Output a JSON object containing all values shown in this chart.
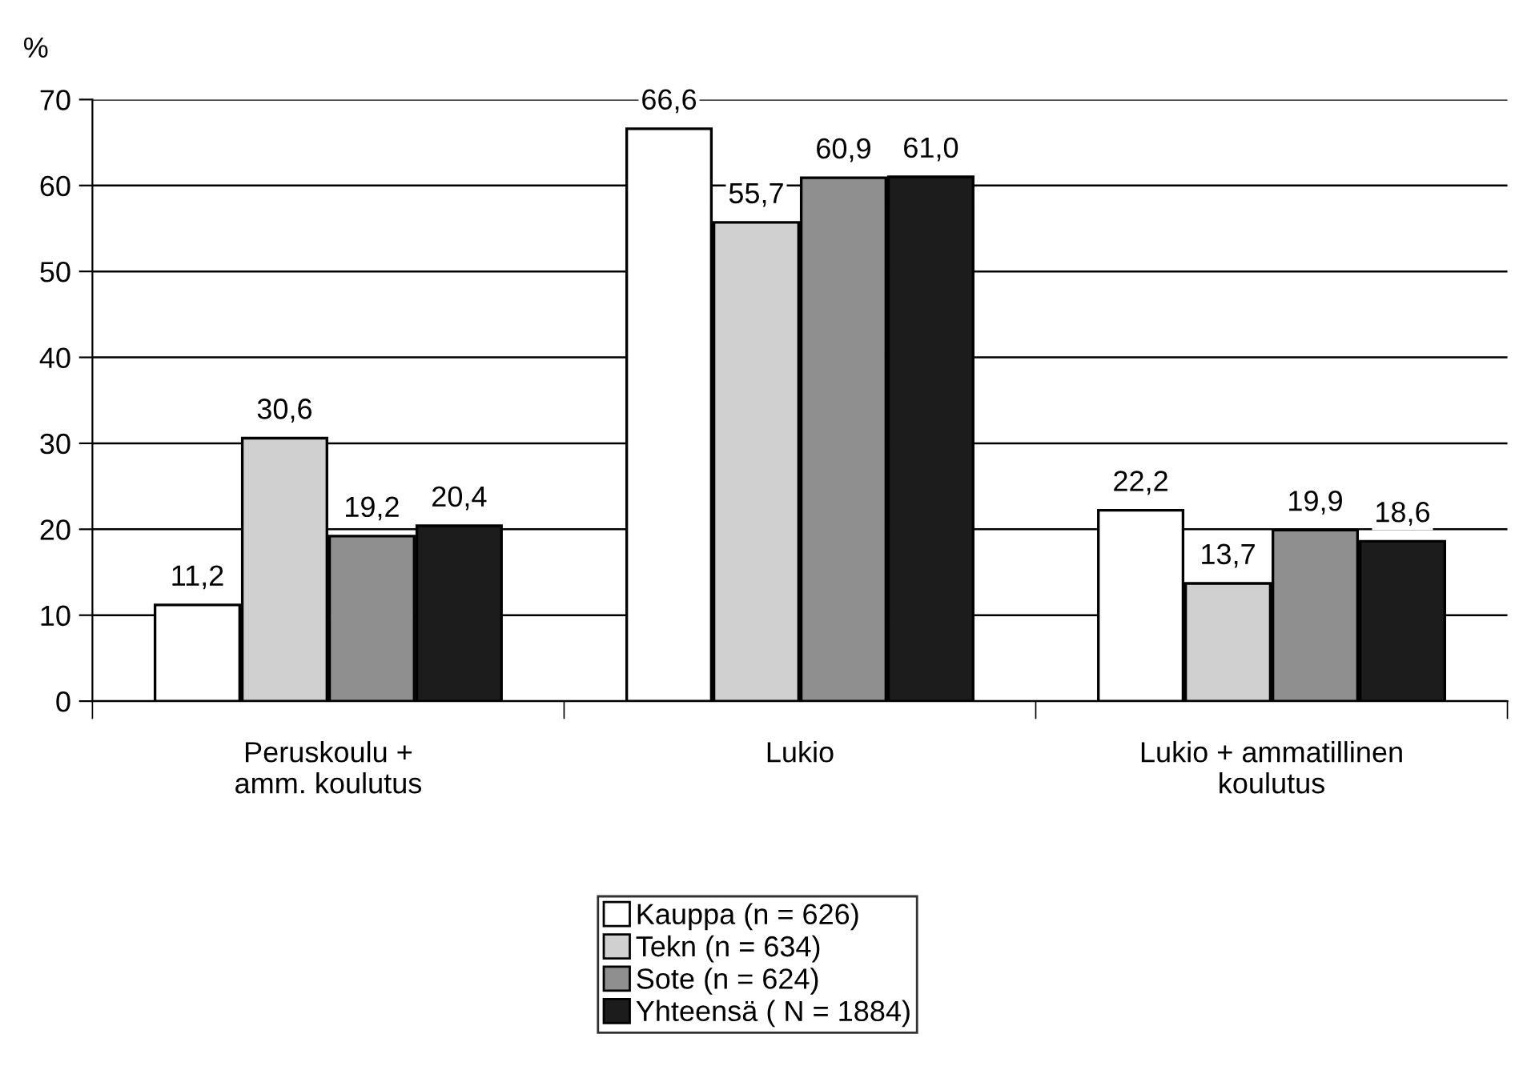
{
  "chart_data": {
    "type": "bar",
    "ylabel": "%",
    "categories": [
      "Peruskoulu +\namm. koulutus",
      "Lukio",
      "Lukio + ammatillinen\nkoulutus"
    ],
    "series": [
      {
        "name": "Kauppa (n = 626)",
        "color": "#ffffff",
        "values": [
          11.2,
          66.6,
          22.2
        ],
        "value_labels": [
          "11,2",
          "66,6",
          "22,2"
        ]
      },
      {
        "name": "Tekn (n = 634)",
        "color": "#d0d0d0",
        "values": [
          30.6,
          55.7,
          13.7
        ],
        "value_labels": [
          "30,6",
          "55,7",
          "13,7"
        ]
      },
      {
        "name": "Sote (n = 624)",
        "color": "#8f8f8f",
        "values": [
          19.2,
          60.9,
          19.9
        ],
        "value_labels": [
          "19,2",
          "60,9",
          "19,9"
        ]
      },
      {
        "name": "Yhteensä ( N = 1884)",
        "color": "#1c1c1c",
        "values": [
          20.4,
          61.0,
          18.6
        ],
        "value_labels": [
          "20,4",
          "61,0",
          "18,6"
        ]
      }
    ],
    "ylim": [
      0,
      70
    ],
    "yticks": [
      0,
      10,
      20,
      30,
      40,
      50,
      60,
      70
    ],
    "grid": "y",
    "legend": "bottom"
  }
}
